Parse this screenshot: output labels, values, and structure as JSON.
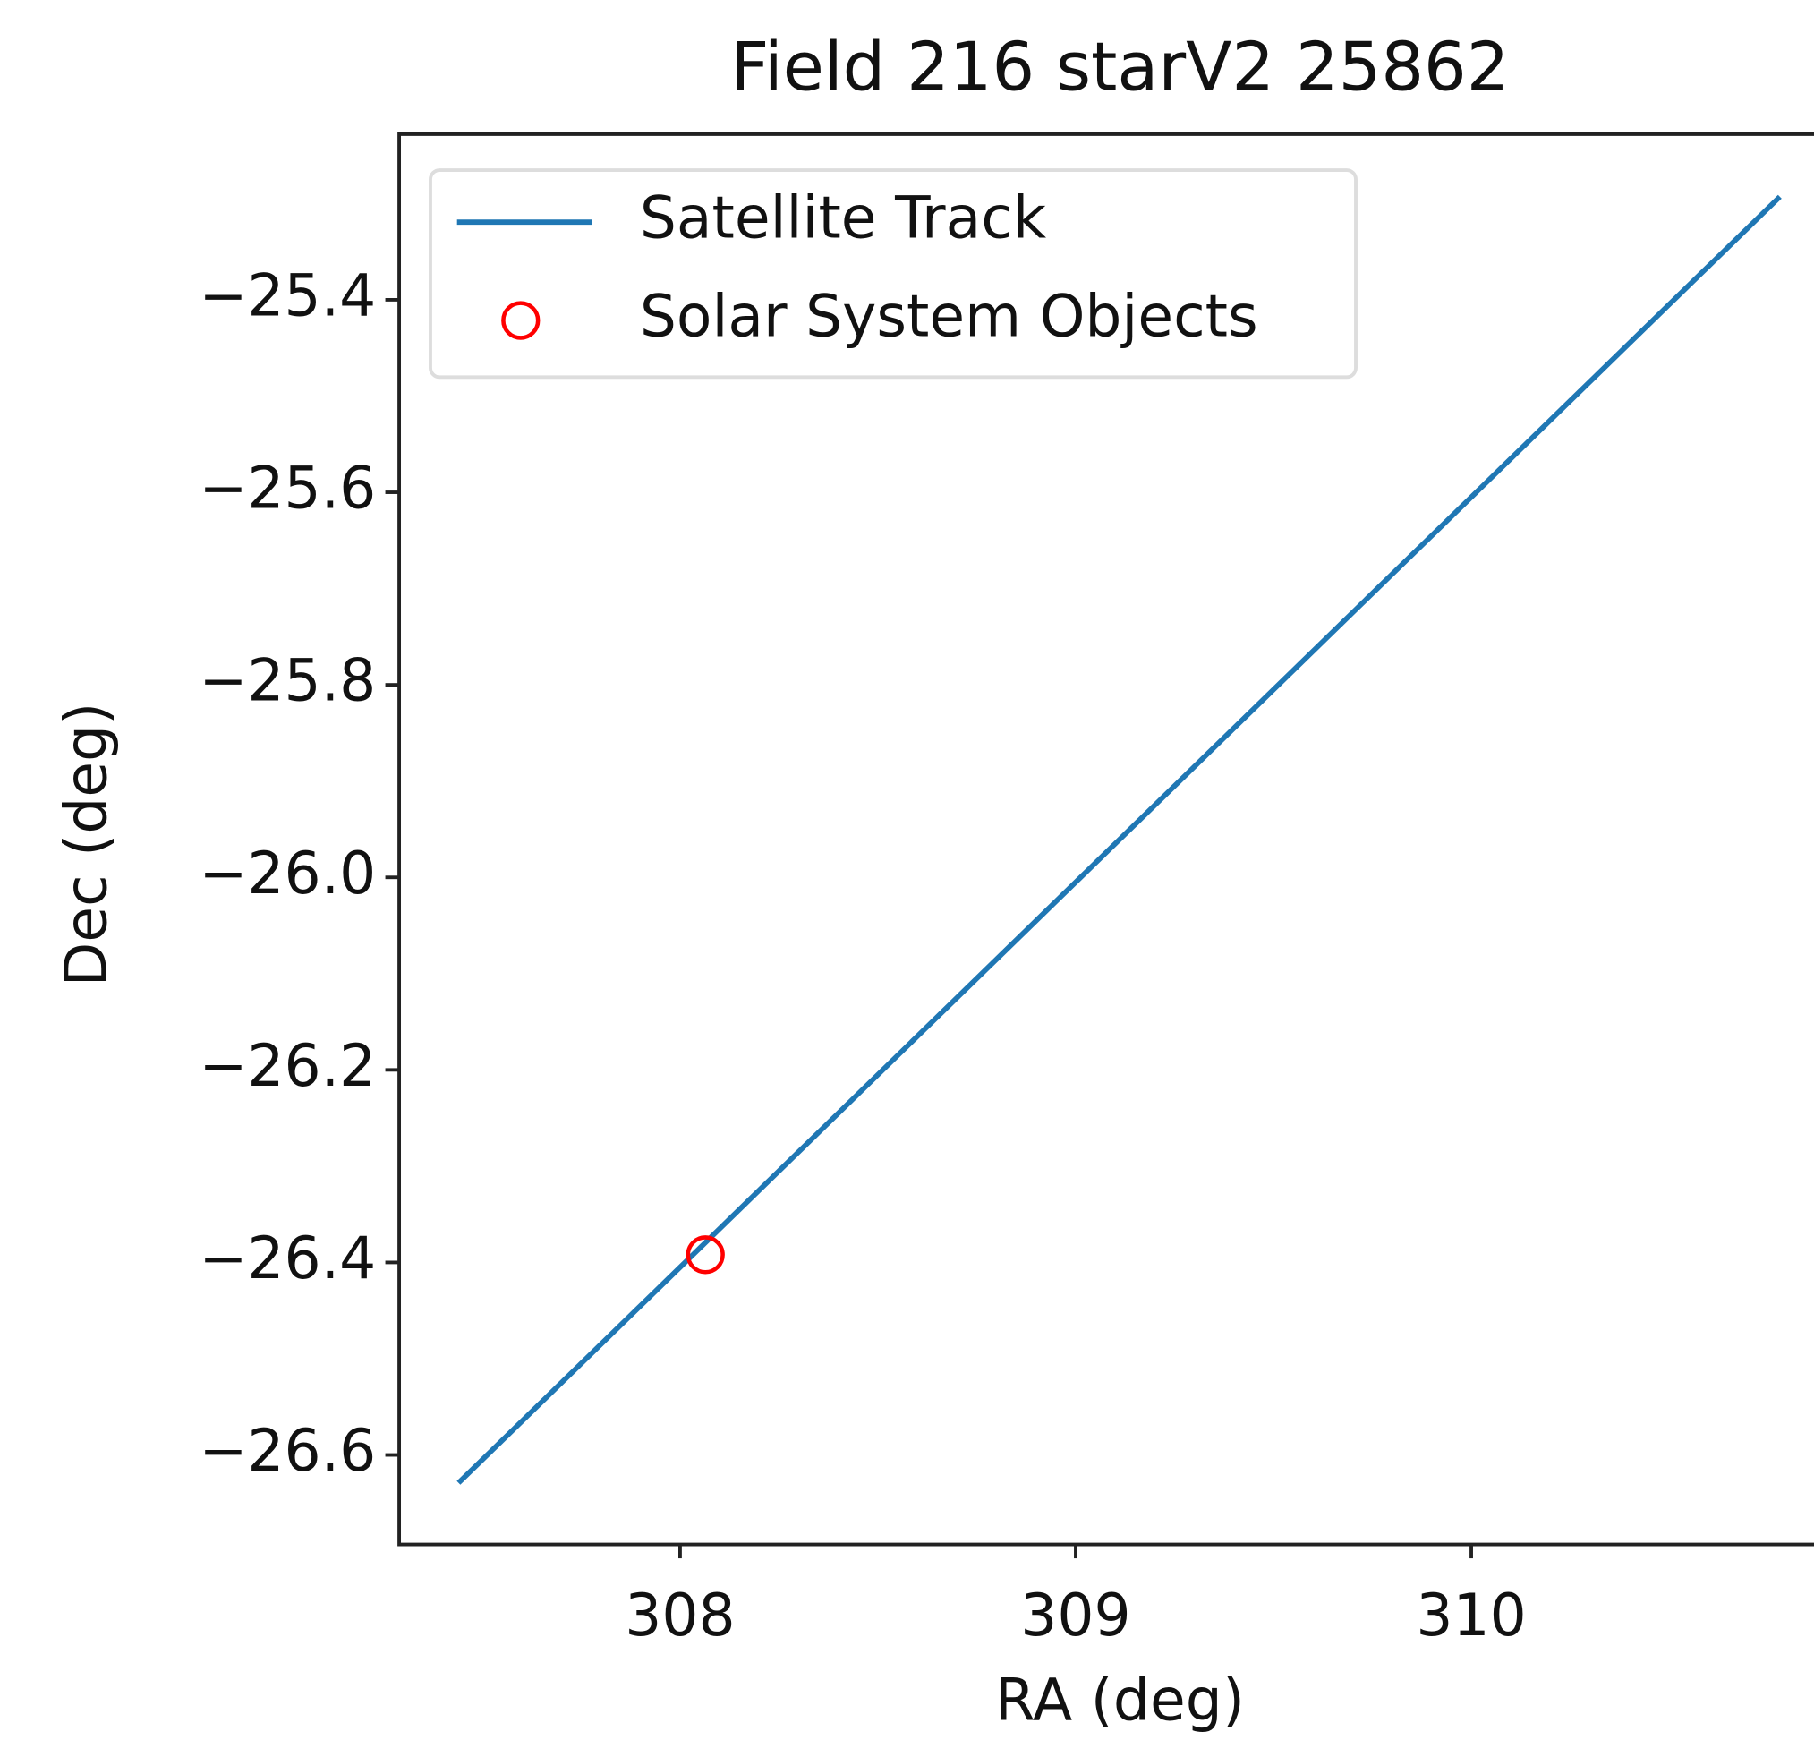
{
  "chart_data": {
    "type": "line",
    "title": "Field 216 starV2 25862",
    "xlabel": "RA (deg)",
    "ylabel": "Dec (deg)",
    "series": [
      {
        "name": "Satellite Track",
        "color": "#1f77b4",
        "x": [
          307.44,
          310.78
        ],
        "values": [
          -26.629,
          -25.293
        ]
      },
      {
        "name": "Solar System Objects",
        "type": "scatter",
        "color": "#ff0000",
        "x": [
          308.064
        ],
        "values": [
          -26.392
        ]
      }
    ],
    "xlim": [
      307.29,
      310.95
    ],
    "xticks": [
      308,
      309,
      310
    ],
    "ylim": [
      -26.693,
      -25.228
    ],
    "yticks": [
      {
        "value": -26.6,
        "label": "−26.6"
      },
      {
        "value": -26.4,
        "label": "−26.4"
      },
      {
        "value": -26.2,
        "label": "−26.2"
      },
      {
        "value": -26.0,
        "label": "−26.0"
      },
      {
        "value": -25.8,
        "label": "−25.8"
      },
      {
        "value": -25.6,
        "label": "−25.6"
      },
      {
        "value": -25.4,
        "label": "−25.4"
      }
    ],
    "legend": "upper left"
  }
}
